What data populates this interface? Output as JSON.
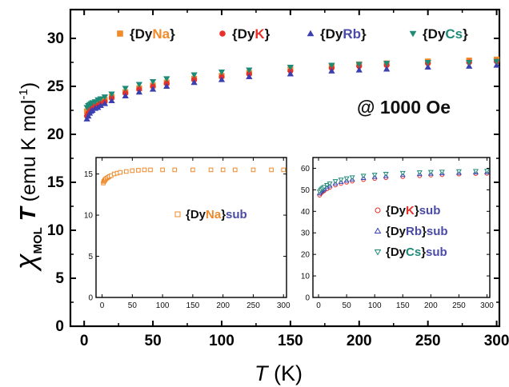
{
  "chart_data": [
    {
      "type": "scatter",
      "xlabel": "T  (K)",
      "ylabel": "χMOL T (emu K mol-1)",
      "xlim": [
        -10,
        302
      ],
      "ylim": [
        0,
        33
      ],
      "xticks": [
        0,
        50,
        100,
        150,
        200,
        250,
        300
      ],
      "yticks": [
        0,
        5,
        10,
        15,
        20,
        25,
        30
      ],
      "annotation": "@ 1000 Oe",
      "legend_position": "top",
      "series": [
        {
          "name": "{DyNa}",
          "name_parts": [
            "{Dy",
            "Na",
            "}"
          ],
          "color": "#f08a2a",
          "label_accent": "#f08a2a",
          "marker": "square",
          "x": [
            2,
            3,
            4,
            5,
            6,
            8,
            10,
            12,
            15,
            20,
            30,
            40,
            50,
            60,
            80,
            100,
            120,
            150,
            180,
            200,
            220,
            250,
            280,
            300
          ],
          "y": [
            22.4,
            22.7,
            22.9,
            23.0,
            23.1,
            23.2,
            23.3,
            23.4,
            23.6,
            23.9,
            24.4,
            24.8,
            25.1,
            25.4,
            25.8,
            26.1,
            26.4,
            26.8,
            27.1,
            27.3,
            27.4,
            27.6,
            27.7,
            27.8
          ]
        },
        {
          "name": "{DyK}",
          "name_parts": [
            "{Dy",
            "K",
            "}"
          ],
          "color": "#e8302a",
          "label_accent": "#e8302a",
          "marker": "circle",
          "x": [
            2,
            3,
            4,
            5,
            6,
            8,
            10,
            12,
            15,
            20,
            30,
            40,
            50,
            60,
            80,
            100,
            120,
            150,
            180,
            200,
            220,
            250,
            280,
            300
          ],
          "y": [
            21.9,
            22.2,
            22.4,
            22.6,
            22.7,
            22.9,
            23.0,
            23.2,
            23.4,
            23.8,
            24.3,
            24.7,
            25.0,
            25.3,
            25.7,
            26.0,
            26.3,
            26.6,
            26.9,
            27.1,
            27.2,
            27.4,
            27.5,
            27.6
          ]
        },
        {
          "name": "{DyRb}",
          "name_parts": [
            "{Dy",
            "Rb",
            "}"
          ],
          "color": "#3c3fb0",
          "label_accent": "#4a4aa8",
          "marker": "triangle-up",
          "x": [
            2,
            3,
            4,
            5,
            6,
            8,
            10,
            12,
            15,
            20,
            30,
            40,
            50,
            60,
            80,
            100,
            120,
            150,
            180,
            200,
            220,
            250,
            280,
            300
          ],
          "y": [
            21.6,
            21.9,
            22.2,
            22.4,
            22.5,
            22.7,
            22.8,
            23.0,
            23.2,
            23.5,
            24.0,
            24.4,
            24.7,
            25.0,
            25.4,
            25.7,
            26.0,
            26.3,
            26.6,
            26.7,
            26.8,
            27.0,
            27.1,
            27.2
          ]
        },
        {
          "name": "{DyCs}",
          "name_parts": [
            "{Dy",
            "Cs",
            "}"
          ],
          "color": "#1f8a78",
          "label_accent": "#1f8a78",
          "marker": "triangle-down",
          "x": [
            2,
            3,
            4,
            5,
            6,
            8,
            10,
            12,
            15,
            20,
            30,
            40,
            50,
            60,
            80,
            100,
            120,
            150,
            180,
            200,
            220,
            250,
            280,
            300
          ],
          "y": [
            22.8,
            23.0,
            23.1,
            23.2,
            23.3,
            23.4,
            23.6,
            23.7,
            23.9,
            24.2,
            24.8,
            25.2,
            25.5,
            25.8,
            26.2,
            26.5,
            26.7,
            27.0,
            27.2,
            27.3,
            27.4,
            27.5,
            27.5,
            27.6
          ]
        }
      ]
    },
    {
      "type": "scatter",
      "xlim": [
        -10,
        305
      ],
      "ylim": [
        0,
        17
      ],
      "xticks": [
        0,
        50,
        100,
        150,
        200,
        250,
        300
      ],
      "yticks": [
        0,
        5,
        10,
        15
      ],
      "legend_position": "center-right",
      "series": [
        {
          "name": "{DyNa}sub",
          "name_parts": [
            "{Dy",
            "Na",
            "}sub"
          ],
          "color": "#f08a2a",
          "label_accent": "#f08a2a",
          "marker": "square-open",
          "x": [
            2,
            3,
            4,
            5,
            6,
            8,
            10,
            12,
            15,
            20,
            25,
            30,
            40,
            50,
            60,
            70,
            80,
            100,
            120,
            150,
            180,
            200,
            220,
            250,
            280,
            300
          ],
          "y": [
            13.9,
            14.1,
            14.2,
            14.3,
            14.4,
            14.5,
            14.6,
            14.7,
            14.8,
            15.0,
            15.1,
            15.2,
            15.3,
            15.4,
            15.45,
            15.5,
            15.5,
            15.5,
            15.5,
            15.5,
            15.5,
            15.5,
            15.5,
            15.5,
            15.5,
            15.5
          ]
        }
      ]
    },
    {
      "type": "scatter",
      "xlim": [
        -10,
        305
      ],
      "ylim": [
        0,
        65
      ],
      "xticks": [
        0,
        50,
        100,
        150,
        200,
        250,
        300
      ],
      "yticks": [
        0,
        10,
        20,
        30,
        40,
        50,
        60
      ],
      "legend_position": "center-right",
      "series": [
        {
          "name": "{DyK}sub",
          "name_parts": [
            "{Dy",
            "K",
            "}sub"
          ],
          "color": "#e8302a",
          "label_accent": "#e8302a",
          "marker": "circle-open",
          "x": [
            2,
            4,
            6,
            8,
            10,
            15,
            20,
            30,
            40,
            50,
            60,
            80,
            100,
            120,
            150,
            180,
            200,
            220,
            250,
            280,
            300
          ],
          "y": [
            47.5,
            48.3,
            48.8,
            49.2,
            49.6,
            50.4,
            51.1,
            52.2,
            52.9,
            53.5,
            54.0,
            54.7,
            55.2,
            55.6,
            56.1,
            56.5,
            56.8,
            57.0,
            57.3,
            57.5,
            57.6
          ]
        },
        {
          "name": "{DyRb}sub",
          "name_parts": [
            "{Dy",
            "Rb",
            "}sub"
          ],
          "color": "#3c3fb0",
          "label_accent": "#4a4aa8",
          "marker": "triangle-up-open",
          "x": [
            2,
            4,
            6,
            8,
            10,
            15,
            20,
            30,
            40,
            50,
            60,
            80,
            100,
            120,
            150,
            180,
            200,
            220,
            250,
            280,
            300
          ],
          "y": [
            48.4,
            49.2,
            49.7,
            50.1,
            50.5,
            51.3,
            52.0,
            53.0,
            53.7,
            54.3,
            54.8,
            55.5,
            56.0,
            56.4,
            56.9,
            57.3,
            57.5,
            57.7,
            57.9,
            58.1,
            58.2
          ]
        },
        {
          "name": "{DyCs}sub",
          "name_parts": [
            "{Dy",
            "Cs",
            "}sub"
          ],
          "color": "#1f8a78",
          "label_accent": "#1f8a78",
          "marker": "triangle-down-open",
          "x": [
            2,
            4,
            6,
            8,
            10,
            15,
            20,
            30,
            40,
            50,
            60,
            80,
            100,
            120,
            150,
            180,
            200,
            220,
            250,
            280,
            300
          ],
          "y": [
            49.2,
            50.0,
            50.5,
            50.9,
            51.3,
            52.2,
            52.9,
            54.0,
            54.7,
            55.3,
            55.8,
            56.5,
            57.0,
            57.4,
            57.8,
            58.1,
            58.3,
            58.4,
            58.6,
            58.7,
            58.8
          ]
        }
      ]
    }
  ]
}
